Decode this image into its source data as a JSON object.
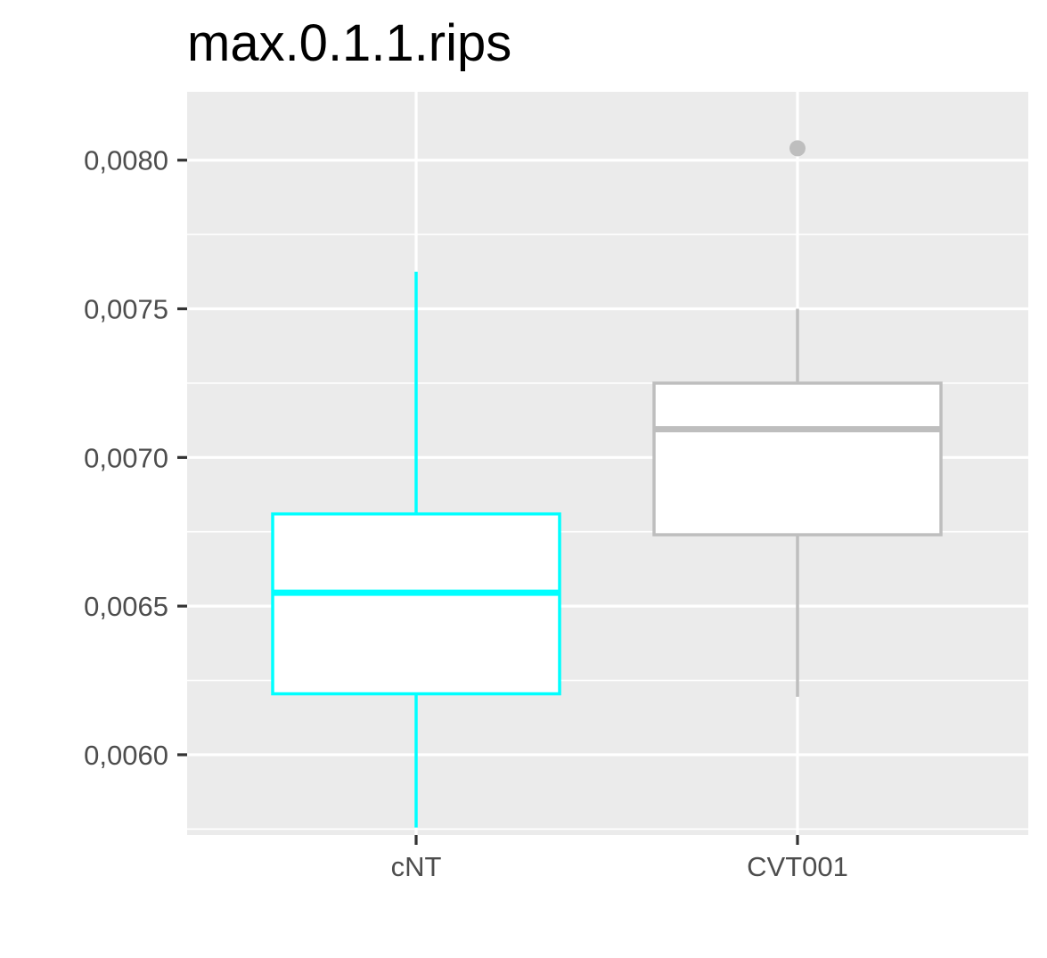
{
  "chart_data": {
    "type": "boxplot",
    "title": "max.0.1.1.rips",
    "xlabel": "",
    "ylabel": "",
    "ylim": [
      0.00573,
      0.00823
    ],
    "y_ticks": [
      {
        "value": 0.006,
        "label": "0,0060"
      },
      {
        "value": 0.0065,
        "label": "0,0065"
      },
      {
        "value": 0.007,
        "label": "0,0070"
      },
      {
        "value": 0.0075,
        "label": "0,0075"
      },
      {
        "value": 0.008,
        "label": "0,0080"
      }
    ],
    "y_minor_ticks": [
      0.00575,
      0.00625,
      0.00675,
      0.00725,
      0.00775
    ],
    "categories": [
      "cNT",
      "CVT001"
    ],
    "boxes": [
      {
        "category": "cNT",
        "whisker_low": 0.005755,
        "q1": 0.006205,
        "median": 0.006545,
        "q3": 0.00681,
        "whisker_high": 0.007625,
        "outliers": [],
        "color": "#00FFFF"
      },
      {
        "category": "CVT001",
        "whisker_low": 0.006195,
        "q1": 0.00674,
        "median": 0.007095,
        "q3": 0.00725,
        "whisker_high": 0.0075,
        "outliers": [
          0.00804
        ],
        "color": "#BEBEBE"
      }
    ],
    "grid": true,
    "legend": "none",
    "colors": {
      "panel_background": "#EBEBEB",
      "grid_line": "#FFFFFF",
      "box_fill": "#FFFFFF",
      "tick_text": "#4D4D4D",
      "tick_mark": "#333333"
    }
  }
}
